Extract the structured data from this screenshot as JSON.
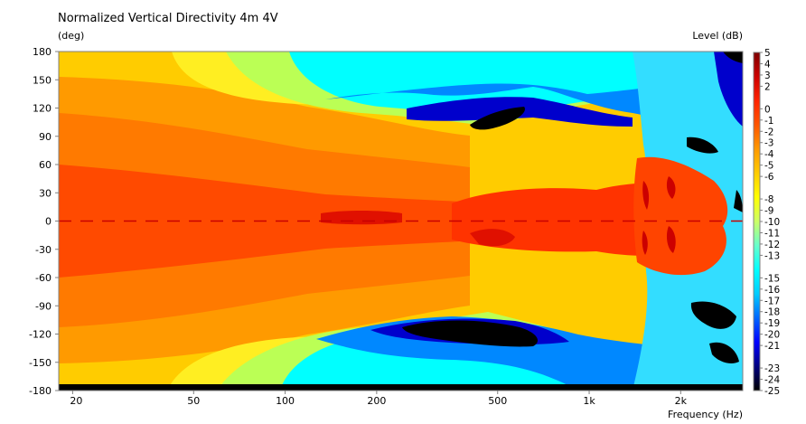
{
  "chart_data": {
    "type": "heatmap",
    "title": "Normalized Vertical Directivity 4m 4V",
    "ylabel": "(deg)",
    "xlabel": "Frequency  (Hz)",
    "colorbar_label": "Level  (dB)",
    "x_scale": "log",
    "xlim": [
      18,
      3200
    ],
    "ylim": [
      -180,
      180
    ],
    "x_ticks": [
      {
        "value": 20,
        "label": "20"
      },
      {
        "value": 50,
        "label": "50"
      },
      {
        "value": 100,
        "label": "100"
      },
      {
        "value": 200,
        "label": "200"
      },
      {
        "value": 500,
        "label": "500"
      },
      {
        "value": 1000,
        "label": "1k"
      },
      {
        "value": 2000,
        "label": "2k"
      }
    ],
    "y_ticks": [
      180,
      150,
      120,
      90,
      60,
      30,
      0,
      -30,
      -60,
      -90,
      -120,
      -150,
      -180
    ],
    "color_scale": {
      "range": [
        -25,
        5
      ],
      "ticks": [
        5,
        4,
        3,
        2,
        0,
        -1,
        -2,
        -3,
        -4,
        -5,
        -6,
        -8,
        -9,
        -10,
        -11,
        -12,
        -13,
        -15,
        -16,
        -17,
        -18,
        -19,
        -20,
        -21,
        -23,
        -24,
        -25
      ],
      "colors": [
        "#000000",
        "#00007f",
        "#0000ff",
        "#0066ff",
        "#00ccff",
        "#00ffff",
        "#66ffcc",
        "#ccff66",
        "#ffff00",
        "#ffcc00",
        "#ff9900",
        "#ff5500",
        "#ff2200",
        "#cc0000",
        "#7f0000"
      ]
    },
    "contour_levels_db": [
      {
        "frequency_hz": 20,
        "angle_deg": 0,
        "level_db": -1
      },
      {
        "frequency_hz": 20,
        "angle_deg": 60,
        "level_db": -3
      },
      {
        "frequency_hz": 20,
        "angle_deg": 120,
        "level_db": -5
      },
      {
        "frequency_hz": 20,
        "angle_deg": 180,
        "level_db": -6
      },
      {
        "frequency_hz": 100,
        "angle_deg": 150,
        "level_db": -8
      },
      {
        "frequency_hz": 300,
        "angle_deg": 110,
        "level_db": -18
      },
      {
        "frequency_hz": 500,
        "angle_deg": 115,
        "level_db": -25
      },
      {
        "frequency_hz": 350,
        "angle_deg": -115,
        "level_db": -25
      },
      {
        "frequency_hz": 500,
        "angle_deg": -25,
        "level_db": 0
      },
      {
        "frequency_hz": 1400,
        "angle_deg": 0,
        "level_db": 2
      },
      {
        "frequency_hz": 2000,
        "angle_deg": 90,
        "level_db": -25
      }
    ]
  }
}
